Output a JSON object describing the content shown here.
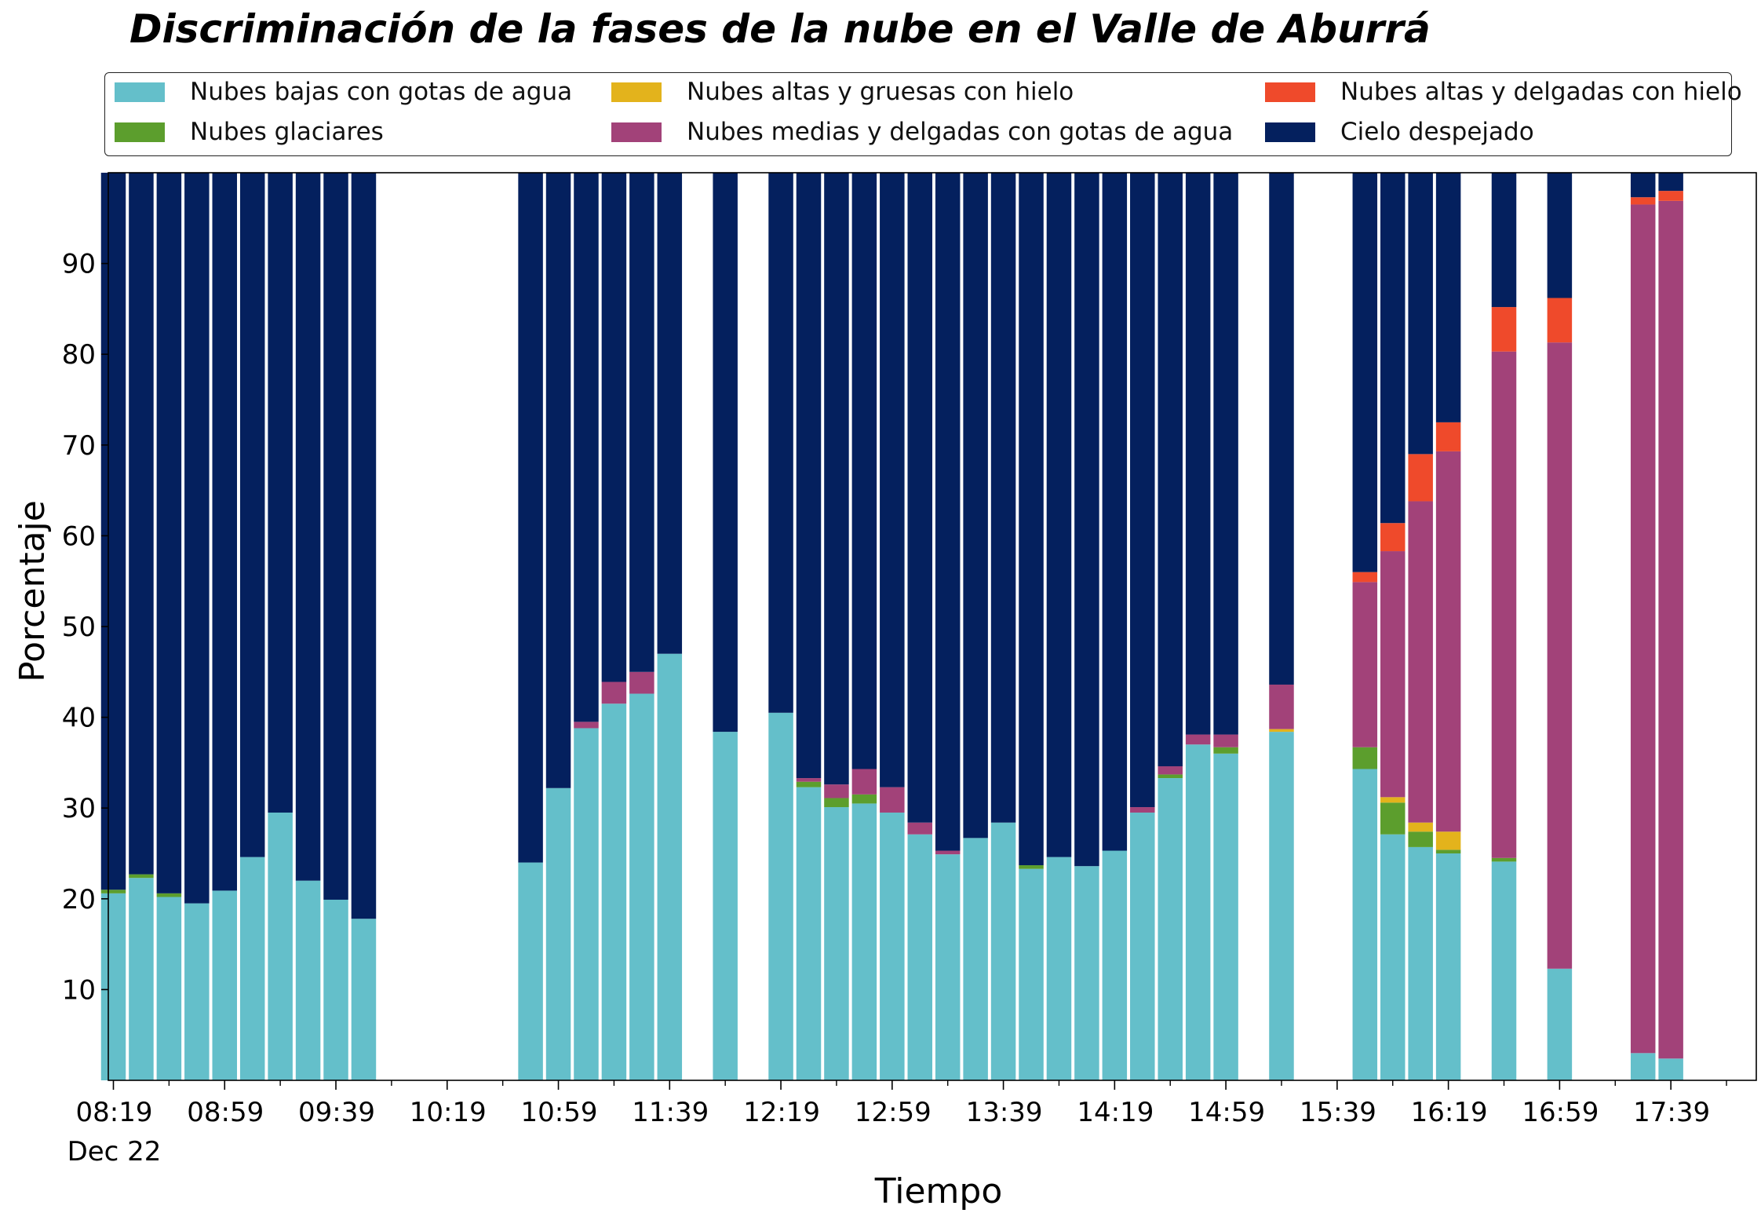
{
  "chart_data": {
    "type": "bar",
    "stacked": true,
    "title": "Discriminación de la fases de la nube en el Valle de Aburrá",
    "xlabel": "Tiempo",
    "ylabel": "Porcentaje",
    "ylim": [
      0,
      100
    ],
    "yticks": [
      10,
      20,
      30,
      40,
      50,
      60,
      70,
      80,
      90
    ],
    "xtick_labels": [
      "08:19",
      "08:59",
      "09:39",
      "10:19",
      "10:59",
      "11:39",
      "12:19",
      "12:59",
      "13:39",
      "14:19",
      "14:59",
      "15:39",
      "16:19",
      "16:59",
      "17:39"
    ],
    "x_date_label": "Dec 22",
    "legend_position": "top",
    "grid": false,
    "series": [
      {
        "name": "Nubes bajas con gotas de agua",
        "color": "#64bfca"
      },
      {
        "name": "Nubes glaciares",
        "color": "#5c9e2d"
      },
      {
        "name": "Nubes altas y gruesas con hielo",
        "color": "#e3b31c"
      },
      {
        "name": "Nubes medias y delgadas con gotas de agua",
        "color": "#a24279"
      },
      {
        "name": "Nubes altas y delgadas con hielo",
        "color": "#ef4a2b"
      },
      {
        "name": "Cielo despejado",
        "color": "#04205e"
      }
    ],
    "bars": [
      {
        "time": "08:19",
        "values": [
          20.6,
          0.4,
          0,
          0,
          0,
          79.0
        ]
      },
      {
        "time": "08:29",
        "values": [
          22.3,
          0.4,
          0,
          0,
          0,
          77.3
        ]
      },
      {
        "time": "08:39",
        "values": [
          20.2,
          0.4,
          0,
          0,
          0,
          79.4
        ]
      },
      {
        "time": "08:49",
        "values": [
          19.5,
          0,
          0,
          0,
          0,
          80.5
        ]
      },
      {
        "time": "08:59",
        "values": [
          20.9,
          0,
          0,
          0,
          0,
          79.1
        ]
      },
      {
        "time": "09:09",
        "values": [
          24.6,
          0,
          0,
          0,
          0,
          75.4
        ]
      },
      {
        "time": "09:19",
        "values": [
          29.5,
          0,
          0,
          0,
          0,
          70.5
        ]
      },
      {
        "time": "09:29",
        "values": [
          22.0,
          0,
          0,
          0,
          0,
          78.0
        ]
      },
      {
        "time": "09:39",
        "values": [
          19.9,
          0,
          0,
          0,
          0,
          80.1
        ]
      },
      {
        "time": "09:49",
        "values": [
          17.8,
          0,
          0,
          0,
          0,
          82.2
        ]
      },
      {
        "time": "10:49",
        "values": [
          24.0,
          0,
          0,
          0,
          0,
          76.0
        ]
      },
      {
        "time": "10:59",
        "values": [
          32.2,
          0,
          0,
          0,
          0,
          67.8
        ]
      },
      {
        "time": "11:09",
        "values": [
          38.8,
          0,
          0,
          0.7,
          0,
          60.5
        ]
      },
      {
        "time": "11:19",
        "values": [
          41.5,
          0,
          0,
          2.4,
          0,
          56.1
        ]
      },
      {
        "time": "11:29",
        "values": [
          42.6,
          0,
          0,
          2.4,
          0,
          55.0
        ]
      },
      {
        "time": "11:39",
        "values": [
          47.0,
          0,
          0,
          0,
          0,
          53.0
        ]
      },
      {
        "time": "11:59",
        "values": [
          38.4,
          0,
          0,
          0,
          0,
          61.6
        ]
      },
      {
        "time": "12:19",
        "values": [
          40.5,
          0,
          0,
          0,
          0,
          59.5
        ]
      },
      {
        "time": "12:29",
        "values": [
          32.3,
          0.6,
          0,
          0.4,
          0,
          66.7
        ]
      },
      {
        "time": "12:39",
        "values": [
          30.1,
          1.0,
          0,
          1.5,
          0,
          67.4
        ]
      },
      {
        "time": "12:49",
        "values": [
          30.5,
          1.0,
          0,
          2.8,
          0,
          65.7
        ]
      },
      {
        "time": "12:59",
        "values": [
          29.5,
          0,
          0,
          2.8,
          0,
          67.7
        ]
      },
      {
        "time": "13:09",
        "values": [
          27.1,
          0,
          0,
          1.3,
          0,
          71.6
        ]
      },
      {
        "time": "13:19",
        "values": [
          24.9,
          0,
          0,
          0.4,
          0,
          74.7
        ]
      },
      {
        "time": "13:29",
        "values": [
          26.7,
          0,
          0,
          0,
          0,
          73.3
        ]
      },
      {
        "time": "13:39",
        "values": [
          28.4,
          0,
          0,
          0,
          0,
          71.6
        ]
      },
      {
        "time": "13:49",
        "values": [
          23.3,
          0.4,
          0,
          0,
          0,
          76.3
        ]
      },
      {
        "time": "13:59",
        "values": [
          24.6,
          0,
          0,
          0,
          0,
          75.4
        ]
      },
      {
        "time": "14:09",
        "values": [
          23.6,
          0,
          0,
          0,
          0,
          76.4
        ]
      },
      {
        "time": "14:19",
        "values": [
          25.3,
          0,
          0,
          0,
          0,
          74.7
        ]
      },
      {
        "time": "14:29",
        "values": [
          29.5,
          0,
          0,
          0.6,
          0,
          69.9
        ]
      },
      {
        "time": "14:39",
        "values": [
          33.3,
          0.4,
          0,
          0.9,
          0,
          65.4
        ]
      },
      {
        "time": "14:49",
        "values": [
          37.0,
          0,
          0,
          1.1,
          0,
          61.9
        ]
      },
      {
        "time": "14:59",
        "values": [
          36.0,
          0.7,
          0,
          1.4,
          0,
          61.9
        ]
      },
      {
        "time": "15:19",
        "values": [
          38.4,
          0,
          0.3,
          4.9,
          0,
          56.4
        ]
      },
      {
        "time": "15:49",
        "values": [
          34.3,
          2.4,
          0,
          18.2,
          1.1,
          44.0
        ]
      },
      {
        "time": "15:59",
        "values": [
          27.1,
          3.5,
          0.6,
          27.1,
          3.1,
          38.6
        ]
      },
      {
        "time": "16:09",
        "values": [
          25.7,
          1.7,
          1.0,
          35.4,
          5.2,
          31.0
        ]
      },
      {
        "time": "16:19",
        "values": [
          25.0,
          0.4,
          2.0,
          41.9,
          3.2,
          27.5
        ]
      },
      {
        "time": "16:39",
        "values": [
          24.1,
          0.4,
          0,
          55.8,
          4.9,
          14.8
        ]
      },
      {
        "time": "16:59",
        "values": [
          12.3,
          0,
          0,
          69.0,
          4.9,
          13.8
        ]
      },
      {
        "time": "17:29",
        "values": [
          3.0,
          0,
          0,
          93.5,
          0.8,
          2.7
        ]
      },
      {
        "time": "17:39",
        "values": [
          2.4,
          0,
          0,
          94.5,
          1.1,
          2.0
        ]
      }
    ]
  }
}
